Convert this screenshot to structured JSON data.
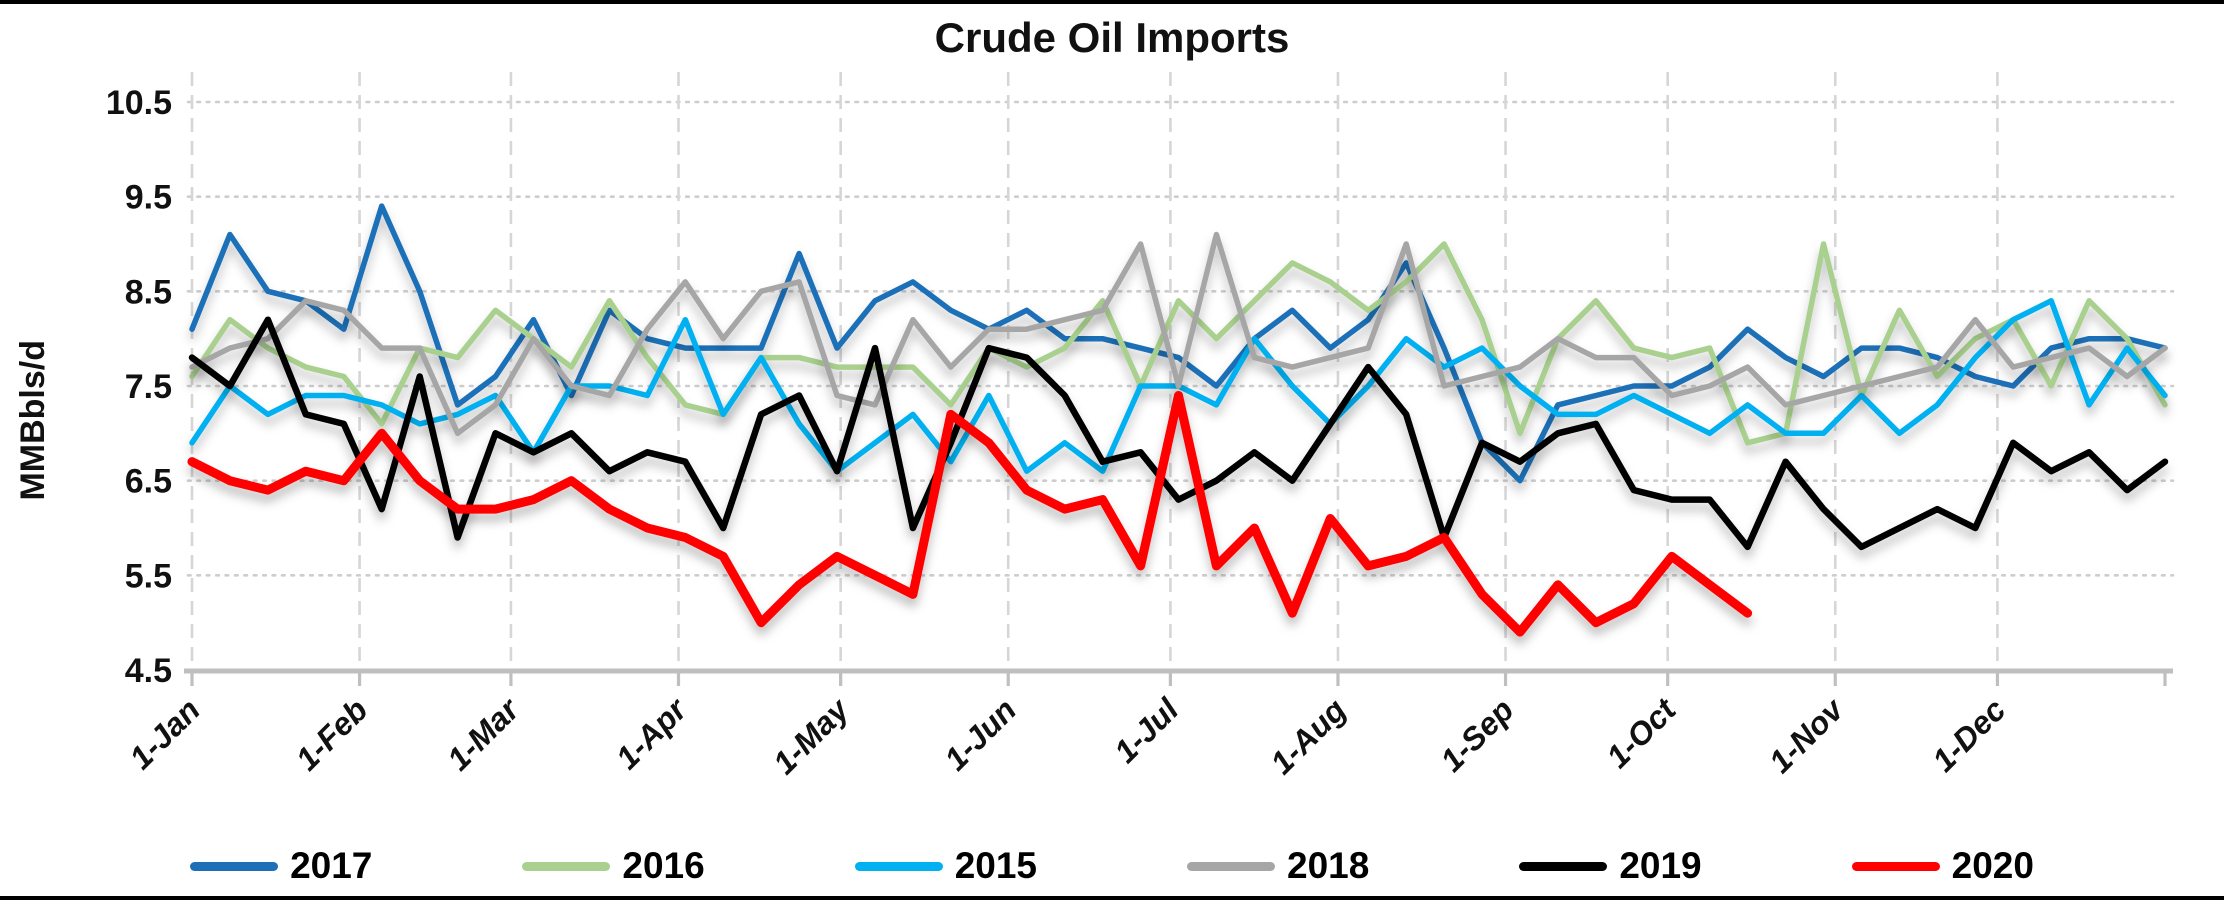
{
  "title": "Crude Oil Imports",
  "y_axis_title": "MMBbls/d",
  "chart_data": {
    "type": "line",
    "x_unit": "week of year (52-week span, Jan 1 – Dec 31)",
    "x_tick_labels": [
      "1-Jan",
      "1-Feb",
      "1-Mar",
      "1-Apr",
      "1-May",
      "1-Jun",
      "1-Jul",
      "1-Aug",
      "1-Sep",
      "1-Oct",
      "1-Nov",
      "1-Dec"
    ],
    "month_start_days": [
      0,
      31,
      59,
      90,
      120,
      151,
      181,
      212,
      243,
      273,
      304,
      334
    ],
    "days_per_year": 365,
    "weeks_span": 52,
    "ylabel": "MMBbls/d",
    "ylim": [
      4.5,
      10.5
    ],
    "y_tick_step": 1.0,
    "y_tick_labels": [
      "4.5",
      "5.5",
      "6.5",
      "7.5",
      "8.5",
      "9.5",
      "10.5"
    ],
    "grid": {
      "horizontal": "dotted",
      "vertical": "dashed"
    },
    "legend_position": "bottom",
    "series": [
      {
        "name": "2017",
        "color": "#1D70B7",
        "width": 5.5,
        "values": [
          8.1,
          9.1,
          8.5,
          8.4,
          8.1,
          9.4,
          8.5,
          7.3,
          7.6,
          8.2,
          7.4,
          8.3,
          8.0,
          7.9,
          7.9,
          7.9,
          8.9,
          7.9,
          8.4,
          8.6,
          8.3,
          8.1,
          8.3,
          8.0,
          8.0,
          7.9,
          7.8,
          7.5,
          8.0,
          8.3,
          7.9,
          8.2,
          8.8,
          7.9,
          6.9,
          6.5,
          7.3,
          7.4,
          7.5,
          7.5,
          7.7,
          8.1,
          7.8,
          7.6,
          7.9,
          7.9,
          7.8,
          7.6,
          7.5,
          7.9,
          8.0,
          8.0,
          7.9
        ]
      },
      {
        "name": "2016",
        "color": "#A9D08E",
        "width": 5.5,
        "values": [
          7.6,
          8.2,
          7.9,
          7.7,
          7.6,
          7.1,
          7.9,
          7.8,
          8.3,
          8.0,
          7.7,
          8.4,
          7.8,
          7.3,
          7.2,
          7.8,
          7.8,
          7.7,
          7.7,
          7.7,
          7.3,
          7.9,
          7.7,
          7.9,
          8.4,
          7.5,
          8.4,
          8.0,
          8.4,
          8.8,
          8.6,
          8.3,
          8.6,
          9.0,
          8.2,
          7.0,
          8.0,
          8.4,
          7.9,
          7.8,
          7.9,
          6.9,
          7.0,
          9.0,
          7.4,
          8.3,
          7.6,
          8.0,
          8.2,
          7.5,
          8.4,
          8.0,
          7.3
        ]
      },
      {
        "name": "2015",
        "color": "#00B0F0",
        "width": 5.5,
        "values": [
          6.9,
          7.5,
          7.2,
          7.4,
          7.4,
          7.3,
          7.1,
          7.2,
          7.4,
          6.8,
          7.5,
          7.5,
          7.4,
          8.2,
          7.2,
          7.8,
          7.1,
          6.6,
          6.9,
          7.2,
          6.7,
          7.4,
          6.6,
          6.9,
          6.6,
          7.5,
          7.5,
          7.3,
          8.0,
          7.5,
          7.1,
          7.5,
          8.0,
          7.7,
          7.9,
          7.5,
          7.2,
          7.2,
          7.4,
          7.2,
          7.0,
          7.3,
          7.0,
          7.0,
          7.4,
          7.0,
          7.3,
          7.8,
          8.2,
          8.4,
          7.3,
          7.9,
          7.4
        ]
      },
      {
        "name": "2018",
        "color": "#A6A6A6",
        "width": 5.5,
        "values": [
          7.7,
          7.9,
          8.0,
          8.4,
          8.3,
          7.9,
          7.9,
          7.0,
          7.3,
          8.0,
          7.5,
          7.4,
          8.1,
          8.6,
          8.0,
          8.5,
          8.6,
          7.4,
          7.3,
          8.2,
          7.7,
          8.1,
          8.1,
          8.2,
          8.3,
          9.0,
          7.5,
          9.1,
          7.8,
          7.7,
          7.8,
          7.9,
          9.0,
          7.5,
          7.6,
          7.7,
          8.0,
          7.8,
          7.8,
          7.4,
          7.5,
          7.7,
          7.3,
          7.4,
          7.5,
          7.6,
          7.7,
          8.2,
          7.7,
          7.8,
          7.9,
          7.6,
          7.9
        ]
      },
      {
        "name": "2019",
        "color": "#000000",
        "width": 6.5,
        "values": [
          7.8,
          7.5,
          8.2,
          7.2,
          7.1,
          6.2,
          7.6,
          5.9,
          7.0,
          6.8,
          7.0,
          6.6,
          6.8,
          6.7,
          6.0,
          7.2,
          7.4,
          6.6,
          7.9,
          6.0,
          6.9,
          7.9,
          7.8,
          7.4,
          6.7,
          6.8,
          6.3,
          6.5,
          6.8,
          6.5,
          7.1,
          7.7,
          7.2,
          5.9,
          6.9,
          6.7,
          7.0,
          7.1,
          6.4,
          6.3,
          6.3,
          5.8,
          6.7,
          6.2,
          5.8,
          6.0,
          6.2,
          6.0,
          6.9,
          6.6,
          6.8,
          6.4,
          6.7
        ]
      },
      {
        "name": "2020",
        "color": "#FF0000",
        "width": 9,
        "values": [
          6.7,
          6.5,
          6.4,
          6.6,
          6.5,
          7.0,
          6.5,
          6.2,
          6.2,
          6.3,
          6.5,
          6.2,
          6.0,
          5.9,
          5.7,
          5.0,
          5.4,
          5.7,
          5.5,
          5.3,
          7.2,
          6.9,
          6.4,
          6.2,
          6.3,
          5.6,
          7.4,
          5.6,
          6.0,
          5.1,
          6.1,
          5.6,
          5.7,
          5.9,
          5.3,
          4.9,
          5.4,
          5.0,
          5.2,
          5.7,
          5.4,
          5.1
        ]
      }
    ]
  },
  "legend": [
    {
      "label": "2017",
      "color": "#1D70B7"
    },
    {
      "label": "2016",
      "color": "#A9D08E"
    },
    {
      "label": "2015",
      "color": "#00B0F0"
    },
    {
      "label": "2018",
      "color": "#A6A6A6"
    },
    {
      "label": "2019",
      "color": "#000000"
    },
    {
      "label": "2020",
      "color": "#FF0000"
    }
  ],
  "style": {
    "grid_color": "#CDCDCD",
    "vgrid_color": "#D6D6D6",
    "axis_color": "#BFBFBF",
    "text_color": "#111111"
  }
}
